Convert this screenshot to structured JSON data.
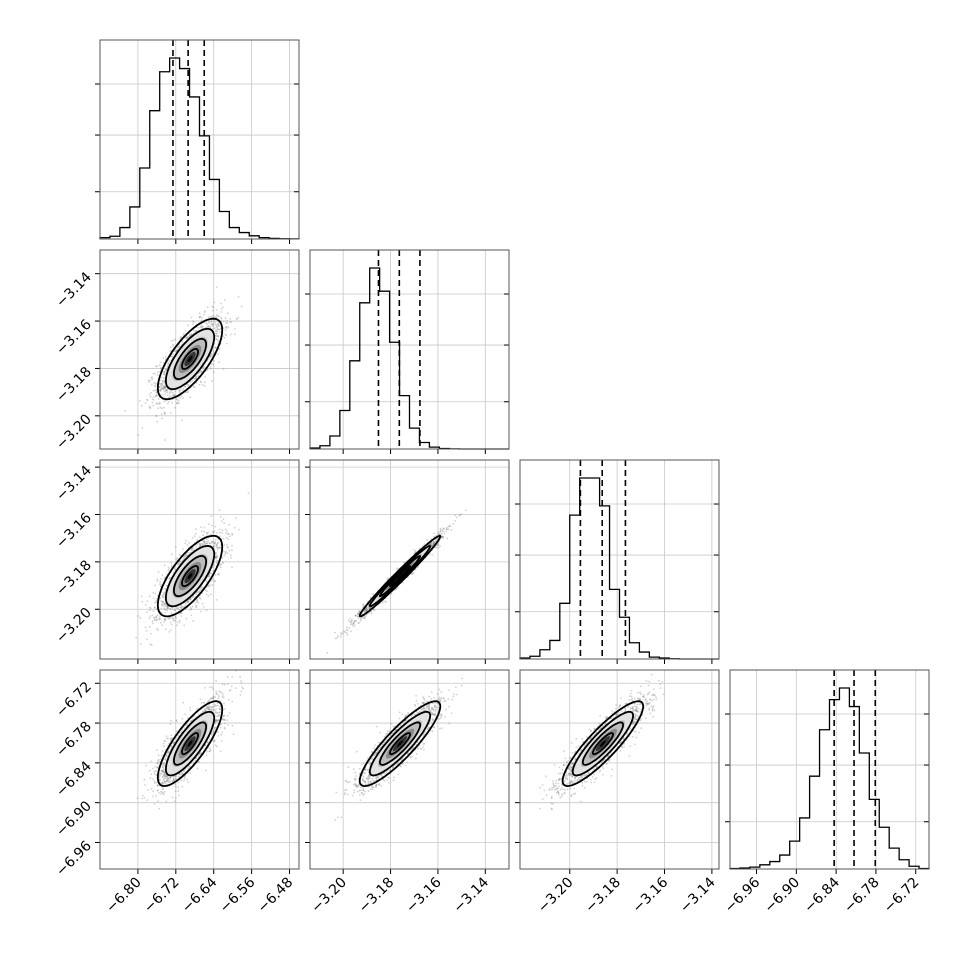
{
  "chart_data": {
    "type": "corner",
    "n_params": 4,
    "parameters": [
      {
        "ticks": [
          -6.8,
          -6.72,
          -6.64,
          -6.56,
          -6.48
        ],
        "tick_labels": [
          "−6.80",
          "−6.72",
          "−6.64",
          "−6.56",
          "−6.48"
        ],
        "range": [
          -6.88,
          -6.46
        ],
        "mean": -6.69,
        "sd": 0.034,
        "quantiles": [
          -6.726,
          -6.694,
          -6.66
        ]
      },
      {
        "ticks": [
          -3.2,
          -3.18,
          -3.16,
          -3.14
        ],
        "tick_labels": [
          "−3.20",
          "−3.18",
          "−3.16",
          "−3.14"
        ],
        "range": [
          -3.214,
          -3.13
        ],
        "mean": -3.176,
        "sd": 0.0085,
        "quantiles": [
          -3.1851,
          -3.1763,
          -3.1676
        ]
      },
      {
        "ticks": [
          -3.2,
          -3.18,
          -3.16,
          -3.14
        ],
        "tick_labels": [
          "−3.20",
          "−3.18",
          "−3.16",
          "−3.14"
        ],
        "range": [
          -3.221,
          -3.137
        ],
        "mean": -3.186,
        "sd": 0.0085,
        "quantiles": [
          -3.1955,
          -3.1863,
          -3.1765
        ]
      },
      {
        "ticks": [
          -6.96,
          -6.9,
          -6.84,
          -6.78,
          -6.72
        ],
        "tick_labels": [
          "−6.96",
          "−6.90",
          "−6.84",
          "−6.78",
          "−6.72"
        ],
        "range": [
          -7.0,
          -6.7
        ],
        "mean": -6.811,
        "sd": 0.032,
        "quantiles": [
          -6.843,
          -6.813,
          -6.781
        ]
      }
    ],
    "histograms": [
      {
        "param": 0,
        "edges_range": [
          -6.88,
          -6.46
        ],
        "counts": [
          30,
          60,
          250,
          700,
          1550,
          2800,
          3650,
          3950,
          3720,
          3100,
          2250,
          1300,
          600,
          250,
          140,
          70,
          30,
          12,
          5,
          2
        ]
      },
      {
        "param": 1,
        "edges_range": [
          -3.214,
          -3.13
        ],
        "counts": [
          20,
          70,
          280,
          830,
          1900,
          3150,
          3900,
          3400,
          2300,
          1150,
          450,
          140,
          40,
          10,
          3,
          0,
          0,
          0,
          0,
          0
        ]
      },
      {
        "param": 2,
        "edges_range": [
          -3.221,
          -3.137
        ],
        "counts": [
          20,
          60,
          200,
          400,
          1200,
          3100,
          3900,
          3900,
          3300,
          1500,
          900,
          350,
          150,
          40,
          20,
          5,
          0,
          0,
          0,
          0
        ]
      },
      {
        "param": 3,
        "edges_range": [
          -7.0,
          -6.7
        ],
        "counts": [
          10,
          20,
          40,
          90,
          160,
          300,
          600,
          1100,
          2000,
          3000,
          3650,
          3900,
          3500,
          2500,
          1500,
          900,
          450,
          200,
          60,
          10
        ]
      }
    ],
    "joint": [
      {
        "x_param": 0,
        "y_param": 1,
        "correlation": 0.72
      },
      {
        "x_param": 0,
        "y_param": 2,
        "correlation": 0.72
      },
      {
        "x_param": 1,
        "y_param": 2,
        "correlation": 0.985
      },
      {
        "x_param": 0,
        "y_param": 3,
        "correlation": 0.8
      },
      {
        "x_param": 1,
        "y_param": 3,
        "correlation": 0.88
      },
      {
        "x_param": 2,
        "y_param": 3,
        "correlation": 0.88
      }
    ],
    "contour_levels_sigma": [
      0.5,
      1.0,
      1.5,
      2.0
    ],
    "grid": true,
    "colors": {
      "line": "#000000",
      "points": "#7f7f7f",
      "grid": "#c8c8c8",
      "frame": "#555555"
    }
  }
}
